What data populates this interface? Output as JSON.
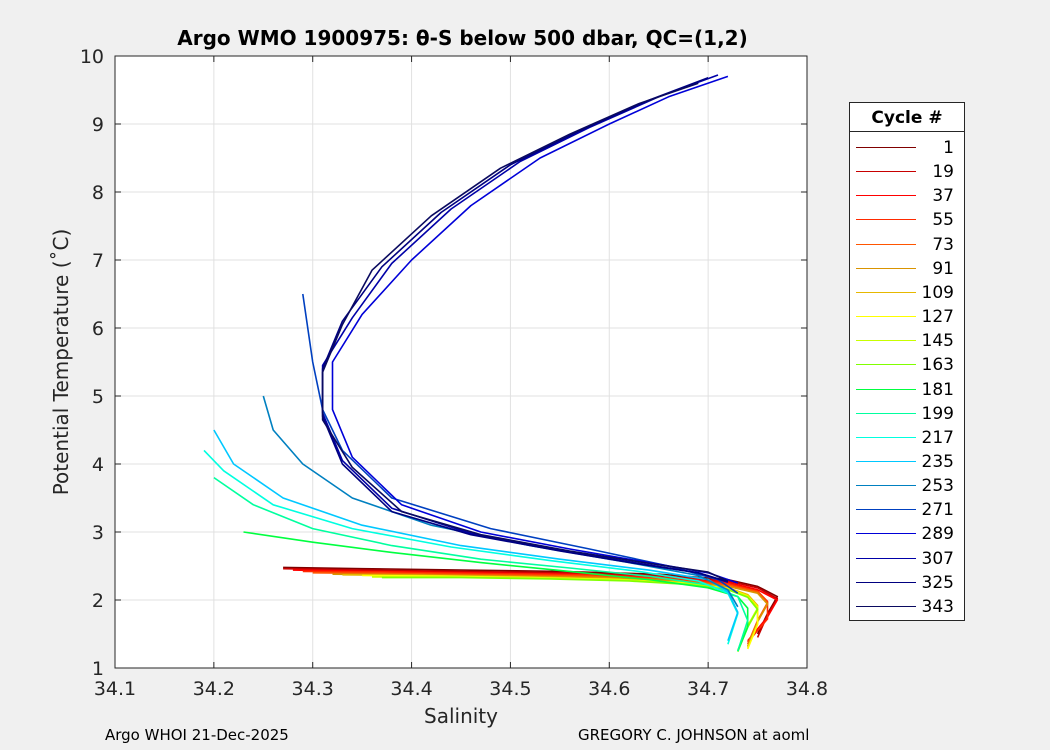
{
  "chart_data": {
    "type": "line",
    "title": "Argo WMO 1900975: θ-S below 500 dbar,  QC=(1,2)",
    "xlabel": "Salinity",
    "ylabel": "Potential Temperature (˚C)",
    "xlim": [
      34.1,
      34.8
    ],
    "ylim": [
      1,
      10
    ],
    "xticks": [
      "34.1",
      "34.2",
      "34.3",
      "34.4",
      "34.5",
      "34.6",
      "34.7",
      "34.8"
    ],
    "yticks": [
      "1",
      "2",
      "3",
      "4",
      "5",
      "6",
      "7",
      "8",
      "9",
      "10"
    ],
    "grid": true,
    "legend_title": "Cycle #",
    "legend_position": "outside-right",
    "series": [
      {
        "name": "1",
        "color": "#800000",
        "x": [
          34.27,
          34.35,
          34.45,
          34.55,
          34.65,
          34.72,
          34.75,
          34.77,
          34.76,
          34.75
        ],
        "y": [
          2.48,
          2.46,
          2.44,
          2.42,
          2.38,
          2.3,
          2.2,
          2.05,
          1.8,
          1.5
        ]
      },
      {
        "name": "19",
        "color": "#c80000",
        "x": [
          34.27,
          34.35,
          34.45,
          34.55,
          34.65,
          34.72,
          34.75,
          34.77,
          34.76,
          34.75
        ],
        "y": [
          2.46,
          2.44,
          2.42,
          2.4,
          2.36,
          2.28,
          2.18,
          2.02,
          1.78,
          1.45
        ]
      },
      {
        "name": "37",
        "color": "#ff0000",
        "x": [
          34.28,
          34.36,
          34.46,
          34.56,
          34.65,
          34.72,
          34.75,
          34.77,
          34.76,
          34.74
        ],
        "y": [
          2.44,
          2.42,
          2.4,
          2.38,
          2.34,
          2.26,
          2.15,
          2.0,
          1.75,
          1.4
        ]
      },
      {
        "name": "55",
        "color": "#ff2a00",
        "x": [
          34.29,
          34.37,
          34.47,
          34.57,
          34.66,
          34.72,
          34.75,
          34.76,
          34.76,
          34.74
        ],
        "y": [
          2.42,
          2.41,
          2.39,
          2.37,
          2.32,
          2.24,
          2.13,
          1.98,
          1.72,
          1.38
        ]
      },
      {
        "name": "73",
        "color": "#ff5500",
        "x": [
          34.3,
          34.38,
          34.48,
          34.58,
          34.66,
          34.72,
          34.75,
          34.76,
          34.75,
          34.74
        ],
        "y": [
          2.4,
          2.39,
          2.37,
          2.35,
          2.3,
          2.22,
          2.12,
          1.96,
          1.7,
          1.35
        ]
      },
      {
        "name": "91",
        "color": "#d99400",
        "x": [
          34.32,
          34.4,
          34.5,
          34.59,
          34.67,
          34.72,
          34.75,
          34.76,
          34.75,
          34.74
        ],
        "y": [
          2.38,
          2.37,
          2.35,
          2.33,
          2.28,
          2.2,
          2.1,
          1.94,
          1.68,
          1.32
        ]
      },
      {
        "name": "109",
        "color": "#e6b800",
        "x": [
          34.33,
          34.41,
          34.51,
          34.6,
          34.67,
          34.72,
          34.74,
          34.75,
          34.75,
          34.74
        ],
        "y": [
          2.37,
          2.36,
          2.34,
          2.31,
          2.26,
          2.18,
          2.08,
          1.92,
          1.66,
          1.3
        ]
      },
      {
        "name": "127",
        "color": "#ffff00",
        "x": [
          34.35,
          34.43,
          34.52,
          34.61,
          34.68,
          34.72,
          34.74,
          34.75,
          34.75,
          34.74
        ],
        "y": [
          2.36,
          2.35,
          2.33,
          2.3,
          2.25,
          2.17,
          2.06,
          1.9,
          1.64,
          1.28
        ]
      },
      {
        "name": "145",
        "color": "#c8ff00",
        "x": [
          34.36,
          34.44,
          34.53,
          34.62,
          34.68,
          34.72,
          34.74,
          34.75,
          34.74,
          34.73
        ],
        "y": [
          2.34,
          2.34,
          2.32,
          2.29,
          2.24,
          2.16,
          2.05,
          1.88,
          1.62,
          1.26
        ]
      },
      {
        "name": "163",
        "color": "#80ff00",
        "x": [
          34.37,
          34.45,
          34.54,
          34.62,
          34.68,
          34.72,
          34.74,
          34.75,
          34.74,
          34.73
        ],
        "y": [
          2.33,
          2.33,
          2.31,
          2.28,
          2.23,
          2.15,
          2.04,
          1.86,
          1.6,
          1.24
        ]
      },
      {
        "name": "181",
        "color": "#00ff40",
        "x": [
          34.23,
          34.3,
          34.38,
          34.47,
          34.56,
          34.64,
          34.7,
          34.73,
          34.74,
          34.74,
          34.73
        ],
        "y": [
          3.0,
          2.85,
          2.7,
          2.55,
          2.42,
          2.3,
          2.18,
          2.05,
          1.88,
          1.6,
          1.25
        ]
      },
      {
        "name": "199",
        "color": "#00ff9f",
        "x": [
          34.2,
          34.24,
          34.3,
          34.38,
          34.47,
          34.56,
          34.64,
          34.7,
          34.73,
          34.74,
          34.73
        ],
        "y": [
          3.8,
          3.4,
          3.05,
          2.8,
          2.6,
          2.47,
          2.35,
          2.22,
          2.05,
          1.7,
          1.25
        ]
      },
      {
        "name": "217",
        "color": "#00ffe0",
        "x": [
          34.19,
          34.21,
          34.26,
          34.34,
          34.44,
          34.54,
          34.63,
          34.69,
          34.72,
          34.73,
          34.72
        ],
        "y": [
          4.2,
          3.9,
          3.4,
          3.05,
          2.78,
          2.58,
          2.42,
          2.28,
          2.1,
          1.8,
          1.35
        ]
      },
      {
        "name": "235",
        "color": "#00c8ff",
        "x": [
          34.2,
          34.22,
          34.27,
          34.35,
          34.45,
          34.55,
          34.64,
          34.7,
          34.72,
          34.73,
          34.72
        ],
        "y": [
          4.5,
          4.0,
          3.5,
          3.1,
          2.8,
          2.6,
          2.44,
          2.3,
          2.12,
          1.82,
          1.4
        ]
      },
      {
        "name": "253",
        "color": "#0080c0",
        "x": [
          34.25,
          34.26,
          34.29,
          34.34,
          34.42,
          34.52,
          34.62,
          34.69,
          34.72,
          34.73
        ],
        "y": [
          5.0,
          4.5,
          4.0,
          3.5,
          3.1,
          2.8,
          2.55,
          2.36,
          2.15,
          1.9
        ]
      },
      {
        "name": "271",
        "color": "#0040c0",
        "x": [
          34.29,
          34.3,
          34.31,
          34.33,
          34.38,
          34.48,
          34.58,
          34.66,
          34.71,
          34.73
        ],
        "y": [
          6.5,
          5.5,
          4.8,
          4.2,
          3.5,
          3.05,
          2.75,
          2.5,
          2.3,
          2.1
        ]
      },
      {
        "name": "289",
        "color": "#0000d8",
        "x": [
          34.72,
          34.66,
          34.6,
          34.53,
          34.46,
          34.4,
          34.35,
          34.32,
          34.32,
          34.34,
          34.39,
          34.47,
          34.56,
          34.64,
          34.7,
          34.73
        ],
        "y": [
          9.7,
          9.4,
          9.0,
          8.5,
          7.8,
          7.0,
          6.2,
          5.5,
          4.8,
          4.1,
          3.4,
          3.0,
          2.75,
          2.55,
          2.4,
          2.25
        ]
      },
      {
        "name": "307",
        "color": "#0000a8",
        "x": [
          34.71,
          34.65,
          34.58,
          34.51,
          34.44,
          34.38,
          34.34,
          34.31,
          34.31,
          34.33,
          34.38,
          34.46,
          34.55,
          34.63,
          34.69,
          34.72
        ],
        "y": [
          9.72,
          9.4,
          8.95,
          8.45,
          7.75,
          6.95,
          6.15,
          5.45,
          4.75,
          4.05,
          3.35,
          2.98,
          2.73,
          2.54,
          2.4,
          2.26
        ]
      },
      {
        "name": "325",
        "color": "#000080",
        "x": [
          34.7,
          34.64,
          34.57,
          34.5,
          34.43,
          34.37,
          34.33,
          34.31,
          34.31,
          34.33,
          34.38,
          34.46,
          34.55,
          34.63,
          34.69,
          34.72
        ],
        "y": [
          9.68,
          9.35,
          8.9,
          8.4,
          7.7,
          6.9,
          6.1,
          5.4,
          4.7,
          4.0,
          3.3,
          2.96,
          2.72,
          2.53,
          2.4,
          2.27
        ]
      },
      {
        "name": "343",
        "color": "#0a0a60",
        "x": [
          34.69,
          34.63,
          34.56,
          34.49,
          34.42,
          34.36,
          34.33,
          34.31,
          34.31,
          34.34,
          34.39,
          34.47,
          34.56,
          34.64,
          34.7,
          34.72
        ],
        "y": [
          9.6,
          9.3,
          8.85,
          8.35,
          7.65,
          6.85,
          6.05,
          5.35,
          4.65,
          3.95,
          3.3,
          2.96,
          2.72,
          2.54,
          2.41,
          2.28
        ]
      }
    ]
  },
  "footer": {
    "left": "Argo WHOI 21-Dec-2025",
    "right": "GREGORY C. JOHNSON at aoml"
  }
}
